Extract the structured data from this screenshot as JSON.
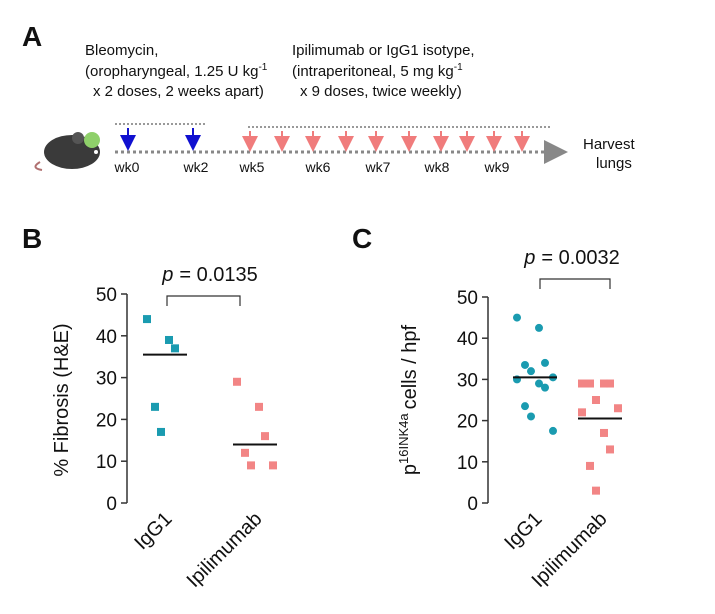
{
  "panel_labels": [
    "A",
    "B",
    "C"
  ],
  "timeline": {
    "bleomycin": {
      "line1": "Bleomycin,",
      "line2": "(oropharyngeal, 1.25 U kg",
      "line2_sup": "-1",
      "line3": "x 2 doses, 2 weeks apart)"
    },
    "antibody": {
      "line1": "Ipilimumab or IgG1 isotype,",
      "line2": "(intraperitoneal, 5 mg kg",
      "line2_sup": "-1",
      "line3": "x 9 doses, twice weekly)"
    },
    "weeks": [
      "wk0",
      "wk2",
      "wk5",
      "wk6",
      "wk7",
      "wk8",
      "wk9"
    ],
    "harvest": [
      "Harvest",
      "lungs"
    ]
  },
  "chart_data": [
    {
      "type": "strip",
      "ylabel": "% Fibrosis (H&E)",
      "categories": [
        "IgG1",
        "Ipilimumab"
      ],
      "groups": [
        {
          "color": "#1a9bb0",
          "marker": "square",
          "values": [
            44,
            39,
            37,
            23,
            17
          ],
          "center": 35.5
        },
        {
          "color": "#f28585",
          "marker": "square",
          "values": [
            29,
            23,
            16,
            12,
            9,
            9
          ],
          "center": 14
        }
      ],
      "ylim": [
        0,
        50
      ],
      "yticks": [
        0,
        10,
        20,
        30,
        40,
        50
      ],
      "annotation": {
        "symbol": "p",
        "text": "= 0.0135"
      }
    },
    {
      "type": "strip",
      "ylabel": {
        "base": "p",
        "superscript": "16INK4a",
        "text": "cells / hpf"
      },
      "categories": [
        "IgG1",
        "Ipilimumab"
      ],
      "groups": [
        {
          "color": "#1a9bb0",
          "marker": "circle",
          "values": [
            45,
            42.5,
            34,
            33.5,
            32,
            30.5,
            30,
            29,
            28,
            23.5,
            21,
            17.5
          ],
          "center": 30.5
        },
        {
          "color": "#f28585",
          "marker": "square",
          "values": [
            29,
            29,
            29,
            29,
            25,
            23,
            22,
            17,
            13,
            9,
            3
          ],
          "center": 20.5
        }
      ],
      "ylim": [
        0,
        50
      ],
      "yticks": [
        0,
        10,
        20,
        30,
        40,
        50
      ],
      "annotation": {
        "symbol": "p",
        "text": "= 0.0032"
      }
    }
  ]
}
